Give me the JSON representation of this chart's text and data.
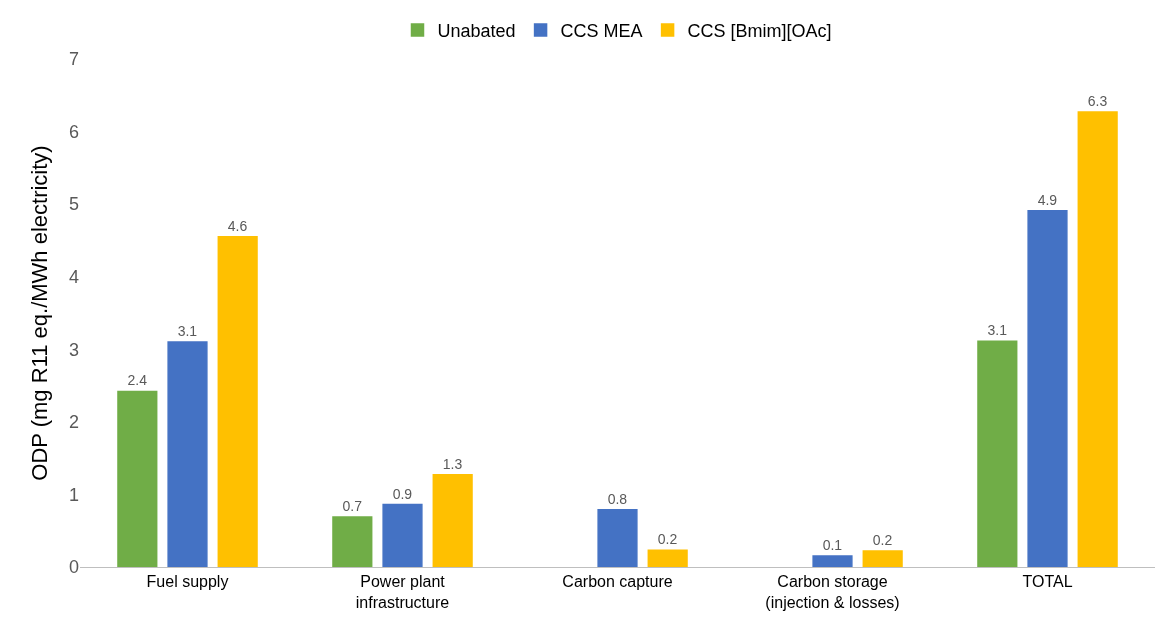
{
  "chart_data": {
    "type": "bar",
    "ylabel": "ODP (mg R11 eq./MWh electricity)",
    "categories": [
      "Fuel supply",
      "Power plant\ninfrastructure",
      "Carbon capture",
      "Carbon storage\n(injection & losses)",
      "TOTAL"
    ],
    "series": [
      {
        "name": "Unabated",
        "color": "#70ad47",
        "values": [
          2.42,
          0.69,
          null,
          null,
          3.11
        ],
        "value_labels": [
          "2.4",
          "0.7",
          null,
          null,
          "3.1"
        ]
      },
      {
        "name": "CCS MEA",
        "color": "#4472c4",
        "values": [
          3.1,
          0.86,
          0.79,
          0.15,
          4.91
        ],
        "value_labels": [
          "3.1",
          "0.9",
          "0.8",
          "0.1",
          "4.9"
        ]
      },
      {
        "name": "CCS [Bmim][OAc]",
        "color": "#ffc000",
        "values": [
          4.55,
          1.27,
          0.23,
          0.22,
          6.27
        ],
        "value_labels": [
          "4.6",
          "1.3",
          "0.2",
          "0.2",
          "6.3"
        ]
      }
    ],
    "ylim": [
      0,
      7
    ],
    "yticks": [
      0,
      1,
      2,
      3,
      4,
      5,
      6,
      7
    ],
    "legend": "top"
  }
}
